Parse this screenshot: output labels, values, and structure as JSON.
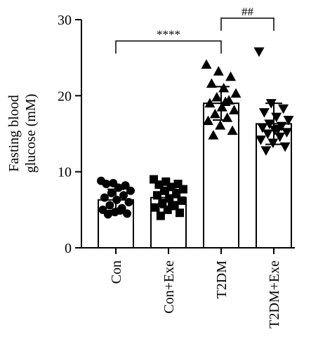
{
  "chart_data": {
    "type": "bar",
    "title": "",
    "ylabel_line1": "Fasting blood",
    "ylabel_line2": "glucose (mM)",
    "xlabel": "",
    "ylim": [
      0,
      30
    ],
    "yticks": [
      "0",
      "10",
      "20",
      "30"
    ],
    "categories": [
      "Con",
      "Con+Exe",
      "T2DM",
      "T2DM+Exe"
    ],
    "values": [
      6.3,
      6.6,
      19.0,
      16.3
    ],
    "error": [
      1.4,
      1.3,
      2.2,
      2.7
    ],
    "marker": [
      "circle",
      "square",
      "triangle-up",
      "triangle-down"
    ],
    "points": [
      [
        8.8,
        8.5,
        8.2,
        8.4,
        7.9,
        7.5,
        7.2,
        6.9,
        6.6,
        6.3,
        6.0,
        5.6,
        5.2,
        5.0,
        4.7,
        4.5,
        4.4,
        4.9
      ],
      [
        9.0,
        8.7,
        8.4,
        8.3,
        8.0,
        7.7,
        7.5,
        7.2,
        6.9,
        6.5,
        6.2,
        5.9,
        5.6,
        5.3,
        5.0,
        4.6,
        4.2,
        5.5
      ],
      [
        24.1,
        23.2,
        22.5,
        21.6,
        21.0,
        20.3,
        19.8,
        19.4,
        19.0,
        18.5,
        18.1,
        17.6,
        17.1,
        16.7,
        16.1,
        15.4,
        14.8,
        19.2
      ],
      [
        25.8,
        19.0,
        18.3,
        17.8,
        17.2,
        16.8,
        16.3,
        16.0,
        15.8,
        15.5,
        15.2,
        15.0,
        14.6,
        14.2,
        13.8,
        13.3,
        12.8,
        15.6
      ]
    ],
    "significance": [
      {
        "from": 0,
        "to": 2,
        "label": "****",
        "y": 27.2
      },
      {
        "from": 2,
        "to": 3,
        "label": "##",
        "y": 30.2
      }
    ],
    "grid": false,
    "legend": "none"
  }
}
